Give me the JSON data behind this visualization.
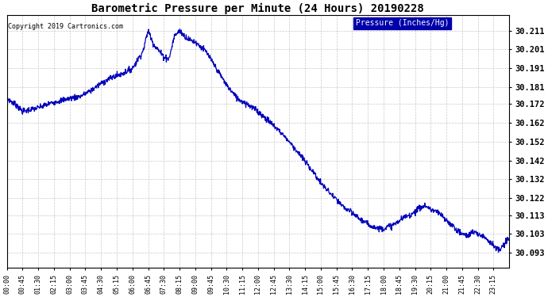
{
  "title": "Barometric Pressure per Minute (24 Hours) 20190228",
  "copyright": "Copyright 2019 Cartronics.com",
  "legend_label": "Pressure (Inches/Hg)",
  "line_color": "#0000bb",
  "background_color": "#ffffff",
  "grid_color": "#bbbbbb",
  "legend_bg": "#0000aa",
  "legend_fg": "#ffffff",
  "yticks": [
    30.093,
    30.103,
    30.113,
    30.122,
    30.132,
    30.142,
    30.152,
    30.162,
    30.172,
    30.181,
    30.191,
    30.201,
    30.211
  ],
  "ymin": 30.085,
  "ymax": 30.219,
  "xtick_labels": [
    "00:00",
    "00:45",
    "01:30",
    "02:15",
    "03:00",
    "03:45",
    "04:30",
    "05:15",
    "06:00",
    "06:45",
    "07:30",
    "08:15",
    "09:00",
    "09:45",
    "10:30",
    "11:15",
    "12:00",
    "12:45",
    "13:30",
    "14:15",
    "15:00",
    "15:45",
    "16:30",
    "17:15",
    "18:00",
    "18:45",
    "19:30",
    "20:15",
    "21:00",
    "21:45",
    "22:30",
    "23:15"
  ],
  "keypoints_x": [
    0,
    30,
    45,
    90,
    135,
    180,
    210,
    240,
    270,
    300,
    330,
    360,
    390,
    405,
    420,
    450,
    465,
    480,
    495,
    510,
    525,
    540,
    570,
    600,
    630,
    660,
    690,
    720,
    750,
    780,
    810,
    840,
    870,
    900,
    930,
    960,
    990,
    1020,
    1035,
    1050,
    1065,
    1080,
    1110,
    1125,
    1140,
    1155,
    1170,
    1185,
    1200,
    1215,
    1230,
    1245,
    1260,
    1275,
    1290,
    1305,
    1320,
    1335,
    1350,
    1365,
    1380,
    1395,
    1410,
    1425,
    1439
  ],
  "keypoints_y": [
    30.175,
    30.171,
    30.168,
    30.17,
    30.173,
    30.175,
    30.176,
    30.179,
    30.183,
    30.186,
    30.188,
    30.191,
    30.2,
    30.211,
    30.204,
    30.197,
    30.196,
    30.208,
    30.211,
    30.208,
    30.206,
    30.205,
    30.2,
    30.191,
    30.182,
    30.175,
    30.172,
    30.168,
    30.163,
    30.158,
    30.152,
    30.145,
    30.138,
    30.13,
    30.124,
    30.118,
    30.114,
    30.11,
    30.108,
    30.107,
    30.106,
    30.106,
    30.108,
    30.11,
    30.112,
    30.113,
    30.115,
    30.117,
    30.118,
    30.116,
    30.115,
    30.113,
    30.11,
    30.108,
    30.105,
    30.103,
    30.102,
    30.104,
    30.103,
    30.102,
    30.1,
    30.097,
    30.094,
    30.097,
    30.101
  ]
}
